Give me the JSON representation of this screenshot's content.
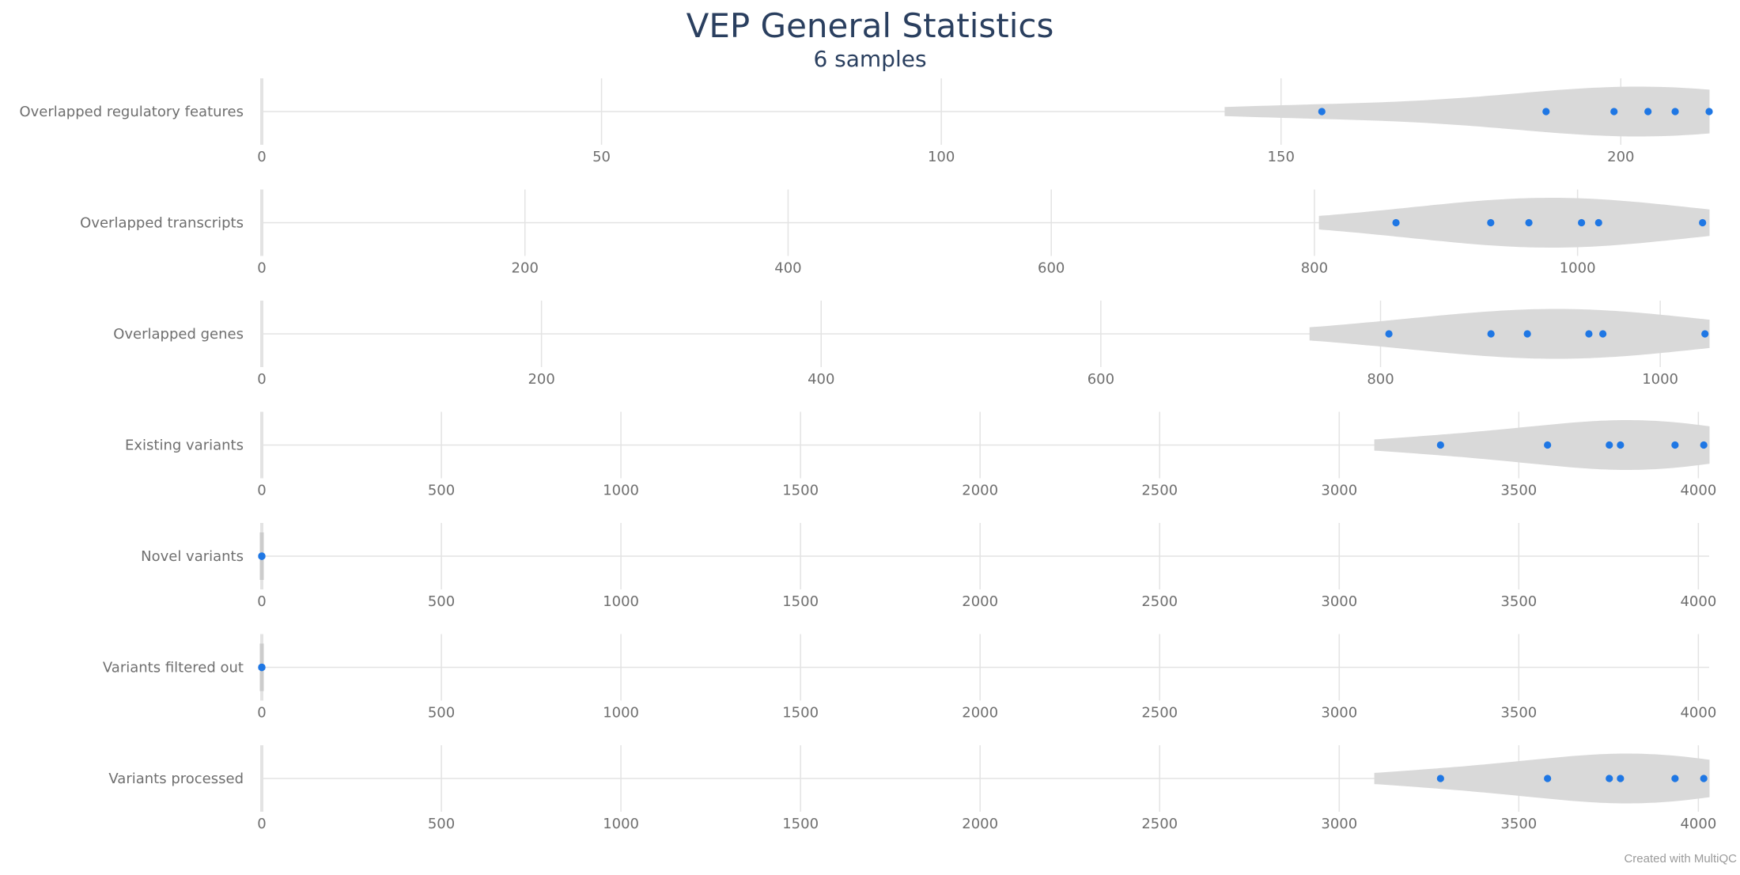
{
  "title": "VEP General Statistics",
  "subtitle": "6 samples",
  "credit": "Created with MultiQC",
  "colors": {
    "point": "#1f77e4",
    "violin": "#d9d9d9",
    "grid": "#e3e3e3",
    "text": "#6f6f6f",
    "title": "#2a3f5f"
  },
  "chart_data": {
    "type": "violin",
    "title": "VEP General Statistics",
    "subtitle": "6 samples",
    "grid": true,
    "rows": [
      {
        "label": "Overlapped regulatory features",
        "xlim": [
          0,
          213
        ],
        "ticks": [
          0,
          50,
          100,
          150,
          200
        ],
        "values": [
          156,
          189,
          199,
          204,
          208,
          213
        ]
      },
      {
        "label": "Overlapped transcripts",
        "xlim": [
          0,
          1100
        ],
        "ticks": [
          0,
          200,
          400,
          600,
          800,
          1000
        ],
        "values": [
          862,
          934,
          963,
          1003,
          1016,
          1095
        ]
      },
      {
        "label": "Overlapped genes",
        "xlim": [
          0,
          1035
        ],
        "ticks": [
          0,
          200,
          400,
          600,
          800,
          1000
        ],
        "values": [
          806,
          879,
          905,
          949,
          959,
          1032
        ]
      },
      {
        "label": "Existing variants",
        "xlim": [
          0,
          4030
        ],
        "ticks": [
          0,
          500,
          1000,
          1500,
          2000,
          2500,
          3000,
          3500,
          4000
        ],
        "values": [
          3282,
          3580,
          3752,
          3783,
          3935,
          4015
        ]
      },
      {
        "label": "Novel variants",
        "xlim": [
          0,
          4030
        ],
        "ticks": [
          0,
          500,
          1000,
          1500,
          2000,
          2500,
          3000,
          3500,
          4000
        ],
        "values": [
          0,
          0,
          0,
          0,
          0,
          0
        ]
      },
      {
        "label": "Variants filtered out",
        "xlim": [
          0,
          4030
        ],
        "ticks": [
          0,
          500,
          1000,
          1500,
          2000,
          2500,
          3000,
          3500,
          4000
        ],
        "values": [
          0,
          0,
          0,
          0,
          0,
          0
        ]
      },
      {
        "label": "Variants processed",
        "xlim": [
          0,
          4030
        ],
        "ticks": [
          0,
          500,
          1000,
          1500,
          2000,
          2500,
          3000,
          3500,
          4000
        ],
        "values": [
          3282,
          3580,
          3752,
          3783,
          3935,
          4015
        ]
      }
    ]
  }
}
